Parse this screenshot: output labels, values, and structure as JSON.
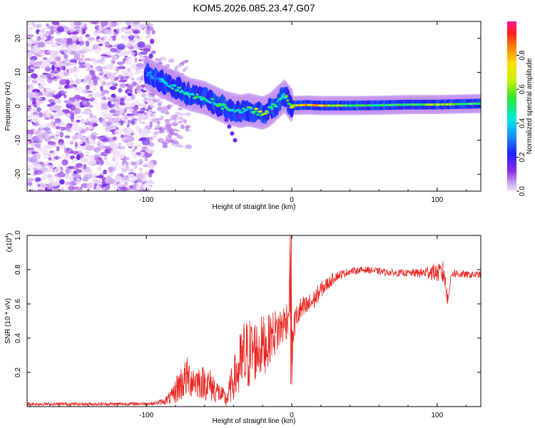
{
  "title": "KOM5.2026.085.23.47.G07",
  "chart_data": [
    {
      "type": "heatmap",
      "xlabel": "Height of straight line (km)",
      "ylabel": "Frequency (Hz)",
      "xlim": [
        -182,
        130
      ],
      "ylim": [
        -25,
        25
      ],
      "x_ticks": [
        -100,
        0,
        100
      ],
      "y_ticks": [
        20,
        10,
        0,
        -10,
        -20
      ],
      "x_tick_labels": [
        "-100",
        "0",
        "100"
      ],
      "y_tick_labels": [
        "20",
        "10",
        "0",
        "-10",
        "-20"
      ],
      "colorbar": {
        "label": "Normalized spectral amplitude",
        "range": [
          0.0,
          1.0
        ],
        "ticks": [
          0.0,
          0.2,
          0.4,
          0.6,
          0.8
        ],
        "tick_labels": [
          "0.0",
          "0.2",
          "0.4",
          "0.6",
          "0.8"
        ],
        "colormap": "rainbow"
      },
      "ridge": {
        "x": [
          -100,
          -95,
          -90,
          -85,
          -80,
          -75,
          -70,
          -65,
          -60,
          -55,
          -50,
          -45,
          -40,
          -35,
          -30,
          -25,
          -20,
          -15,
          -10,
          -5,
          0,
          10,
          20,
          40,
          60,
          80,
          100,
          130
        ],
        "y": [
          10,
          8.5,
          7.5,
          6.5,
          5.5,
          4.5,
          3.5,
          3,
          2.5,
          1.5,
          0.5,
          -0.5,
          -1,
          -1.5,
          -1,
          -1.5,
          -2,
          -1,
          1,
          3,
          0.2,
          0.4,
          0.2,
          0.2,
          0.3,
          0.5,
          0.5,
          0.8
        ],
        "amplitude": [
          0.3,
          0.35,
          0.4,
          0.45,
          0.5,
          0.5,
          0.5,
          0.55,
          0.5,
          0.5,
          0.55,
          0.5,
          0.45,
          0.5,
          0.55,
          0.6,
          0.65,
          0.6,
          0.5,
          0.45,
          0.85,
          0.8,
          0.85,
          0.6,
          0.55,
          0.55,
          0.7,
          0.55
        ]
      },
      "noise_region_x": [
        -182,
        -95
      ]
    },
    {
      "type": "line",
      "xlabel": "Height of straight line (km)",
      "ylabel": "SNR (10 * v/v)",
      "exponent_label": "(x10",
      "exponent_sup": "4",
      "exponent_close": ")",
      "xlim": [
        -182,
        130
      ],
      "ylim": [
        0,
        1.0
      ],
      "x_ticks": [
        -100,
        0,
        100
      ],
      "y_ticks": [
        0.2,
        0.4,
        0.6,
        0.8,
        1.0
      ],
      "x_tick_labels": [
        "-100",
        "0",
        "100"
      ],
      "y_tick_labels": [
        "0.2",
        "0.4",
        "0.6",
        "0.8",
        "1.0"
      ],
      "color": "#e8231e",
      "series": [
        {
          "name": "SNR",
          "x": [
            -182,
            -150,
            -120,
            -95,
            -88,
            -82,
            -78,
            -72,
            -66,
            -60,
            -55,
            -50,
            -45,
            -40,
            -36,
            -33,
            -30,
            -27,
            -24,
            -20,
            -17,
            -14,
            -10,
            -7,
            -4,
            -2,
            -1,
            0,
            1,
            3,
            6,
            10,
            15,
            20,
            25,
            30,
            40,
            50,
            60,
            70,
            80,
            90,
            95,
            100,
            105,
            107,
            110,
            120,
            130
          ],
          "y": [
            0.015,
            0.015,
            0.015,
            0.018,
            0.03,
            0.06,
            0.12,
            0.17,
            0.15,
            0.14,
            0.12,
            0.08,
            0.04,
            0.16,
            0.22,
            0.27,
            0.3,
            0.33,
            0.33,
            0.36,
            0.36,
            0.42,
            0.44,
            0.47,
            0.5,
            0.55,
            1.0,
            0.13,
            0.45,
            0.52,
            0.56,
            0.58,
            0.62,
            0.68,
            0.72,
            0.76,
            0.79,
            0.8,
            0.79,
            0.78,
            0.78,
            0.78,
            0.79,
            0.78,
            0.78,
            0.6,
            0.78,
            0.77,
            0.77
          ],
          "noise_amplitude": [
            0.01,
            0.01,
            0.01,
            0.01,
            0.02,
            0.05,
            0.1,
            0.12,
            0.1,
            0.1,
            0.1,
            0.06,
            0.05,
            0.12,
            0.2,
            0.25,
            0.22,
            0.2,
            0.18,
            0.18,
            0.16,
            0.14,
            0.14,
            0.12,
            0.12,
            0.1,
            0.0,
            0.0,
            0.1,
            0.08,
            0.08,
            0.07,
            0.06,
            0.05,
            0.04,
            0.03,
            0.02,
            0.02,
            0.02,
            0.02,
            0.02,
            0.03,
            0.05,
            0.05,
            0.08,
            0.0,
            0.03,
            0.02,
            0.02
          ]
        }
      ]
    }
  ]
}
